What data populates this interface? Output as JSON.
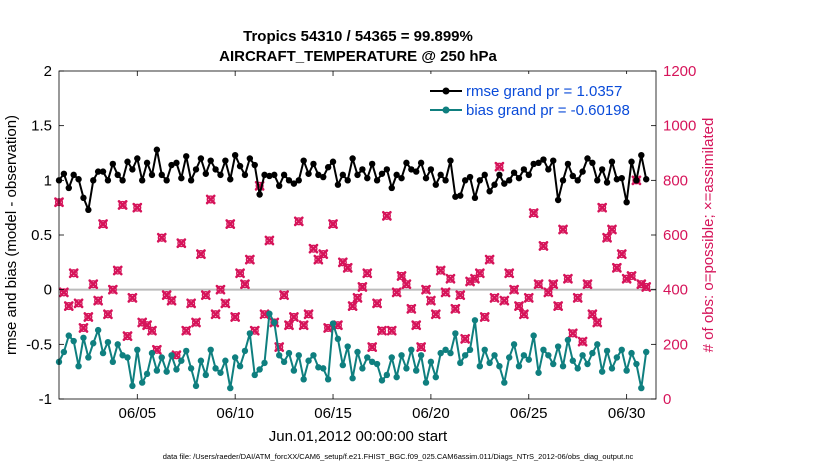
{
  "chart_data": {
    "type": "line",
    "title": "Tropics 54310 / 54365 = 99.899%",
    "subtitle": "AIRCRAFT_TEMPERATURE @ 250 hPa",
    "xlabel": "Jun.01,2012 00:00:00 start",
    "ylabel": "rmse and bias (model - observation)",
    "y2label": "# of obs: o=possible; ×=assimilated",
    "xlim": [
      1,
      31.5
    ],
    "ylim": [
      -1,
      2
    ],
    "y2lim": [
      0,
      1200
    ],
    "x_ticks": [
      5,
      10,
      15,
      20,
      25,
      30
    ],
    "x_tick_labels": [
      "06/05",
      "06/10",
      "06/15",
      "06/20",
      "06/25",
      "06/30"
    ],
    "y_ticks": [
      -1,
      -0.5,
      0,
      0.5,
      1,
      1.5,
      2
    ],
    "y_tick_labels": [
      "-1",
      "-0.5",
      "0",
      "0.5",
      "1",
      "1.5",
      "2"
    ],
    "y2_ticks": [
      0,
      200,
      400,
      600,
      800,
      1000,
      1200
    ],
    "y2_tick_labels": [
      "0",
      "200",
      "400",
      "600",
      "800",
      "1000",
      "1200"
    ],
    "zero_line": 0,
    "legend_position": "top-right",
    "series": [
      {
        "name": "rmse grand pr = 1.0357",
        "color": "#000000",
        "marker": "circle",
        "x": [
          1.0,
          1.25,
          1.5,
          1.75,
          2.0,
          2.25,
          2.5,
          2.75,
          3.0,
          3.25,
          3.5,
          3.75,
          4.0,
          4.25,
          4.5,
          4.75,
          5.0,
          5.25,
          5.5,
          5.75,
          6.0,
          6.25,
          6.5,
          6.75,
          7.0,
          7.25,
          7.5,
          7.75,
          8.0,
          8.25,
          8.5,
          8.75,
          9.0,
          9.25,
          9.5,
          9.75,
          10.0,
          10.25,
          10.5,
          10.75,
          11.0,
          11.25,
          11.5,
          11.75,
          12.0,
          12.25,
          12.5,
          12.75,
          13.0,
          13.25,
          13.5,
          13.75,
          14.0,
          14.25,
          14.5,
          14.75,
          15.0,
          15.25,
          15.5,
          15.75,
          16.0,
          16.25,
          16.5,
          16.75,
          17.0,
          17.25,
          17.5,
          17.75,
          18.0,
          18.25,
          18.5,
          18.75,
          19.0,
          19.25,
          19.5,
          19.75,
          20.0,
          20.25,
          20.5,
          20.75,
          21.0,
          21.25,
          21.5,
          21.75,
          22.0,
          22.25,
          22.5,
          22.75,
          23.0,
          23.25,
          23.5,
          23.75,
          24.0,
          24.25,
          24.5,
          24.75,
          25.0,
          25.25,
          25.5,
          25.75,
          26.0,
          26.25,
          26.5,
          26.75,
          27.0,
          27.25,
          27.5,
          27.75,
          28.0,
          28.25,
          28.5,
          28.75,
          29.0,
          29.25,
          29.5,
          29.75,
          30.0,
          30.25,
          30.5,
          30.75
        ],
        "values": [
          1.0,
          1.06,
          0.93,
          1.05,
          1.01,
          0.84,
          0.73,
          1.0,
          1.08,
          1.08,
          1.0,
          1.15,
          1.05,
          1.0,
          1.17,
          1.1,
          1.2,
          1.0,
          1.16,
          1.05,
          1.28,
          1.05,
          1.0,
          1.14,
          1.16,
          1.02,
          1.22,
          1.0,
          1.1,
          1.2,
          1.06,
          1.18,
          1.1,
          1.05,
          1.18,
          1.01,
          1.23,
          1.13,
          1.05,
          1.2,
          1.14,
          0.87,
          1.05,
          1.04,
          1.05,
          0.95,
          1.05,
          1.0,
          0.97,
          1.0,
          1.18,
          1.06,
          1.15,
          1.05,
          1.03,
          1.12,
          1.17,
          0.96,
          1.05,
          1.0,
          1.2,
          1.05,
          1.1,
          1.02,
          1.15,
          1.0,
          1.06,
          1.1,
          0.93,
          1.05,
          1.02,
          1.16,
          1.1,
          1.08,
          1.16,
          1.02,
          1.1,
          0.96,
          1.05,
          1.0,
          1.18,
          0.85,
          0.86,
          1.0,
          1.03,
          0.84,
          1.0,
          1.05,
          0.9,
          0.96,
          1.05,
          0.97,
          1.0,
          1.07,
          1.02,
          1.1,
          1.05,
          1.15,
          1.16,
          1.19,
          1.1,
          1.18,
          0.82,
          1.0,
          1.15,
          1.04,
          1.0,
          1.08,
          1.2,
          1.16,
          1.0,
          1.1,
          0.98,
          1.17,
          1.01,
          1.02,
          0.8,
          1.17,
          1.0,
          1.23
        ],
        "last_point": [
          31.0,
          1.01
        ]
      },
      {
        "name": "bias grand pr = -0.60198",
        "color": "#0f7f7f",
        "marker": "circle",
        "x": [
          1.0,
          1.25,
          1.5,
          1.75,
          2.0,
          2.25,
          2.5,
          2.75,
          3.0,
          3.25,
          3.5,
          3.75,
          4.0,
          4.25,
          4.5,
          4.75,
          5.0,
          5.25,
          5.5,
          5.75,
          6.0,
          6.25,
          6.5,
          6.75,
          7.0,
          7.25,
          7.5,
          7.75,
          8.0,
          8.25,
          8.5,
          8.75,
          9.0,
          9.25,
          9.5,
          9.75,
          10.0,
          10.25,
          10.5,
          10.75,
          11.0,
          11.25,
          11.5,
          11.75,
          12.0,
          12.25,
          12.5,
          12.75,
          13.0,
          13.25,
          13.5,
          13.75,
          14.0,
          14.25,
          14.5,
          14.75,
          15.0,
          15.25,
          15.5,
          15.75,
          16.0,
          16.25,
          16.5,
          16.75,
          17.0,
          17.25,
          17.5,
          17.75,
          18.0,
          18.25,
          18.5,
          18.75,
          19.0,
          19.25,
          19.5,
          19.75,
          20.0,
          20.25,
          20.5,
          20.75,
          21.0,
          21.25,
          21.5,
          21.75,
          22.0,
          22.25,
          22.5,
          22.75,
          23.0,
          23.25,
          23.5,
          23.75,
          24.0,
          24.25,
          24.5,
          24.75,
          25.0,
          25.25,
          25.5,
          25.75,
          26.0,
          26.25,
          26.5,
          26.75,
          27.0,
          27.25,
          27.5,
          27.75,
          28.0,
          28.25,
          28.5,
          28.75,
          29.0,
          29.25,
          29.5,
          29.75,
          30.0,
          30.25,
          30.5,
          30.75
        ],
        "values": [
          -0.66,
          -0.57,
          -0.42,
          -0.47,
          -0.7,
          -0.44,
          -0.62,
          -0.49,
          -0.37,
          -0.58,
          -0.48,
          -0.66,
          -0.5,
          -0.6,
          -0.62,
          -0.88,
          -0.55,
          -0.85,
          -0.77,
          -0.58,
          -0.74,
          -0.62,
          -0.75,
          -0.6,
          -0.73,
          -0.65,
          -0.56,
          -0.72,
          -0.88,
          -0.65,
          -0.78,
          -0.55,
          -0.72,
          -0.76,
          -0.65,
          -0.9,
          -0.62,
          -0.7,
          -0.56,
          -0.4,
          -0.78,
          -0.73,
          -0.67,
          -0.22,
          -0.3,
          -0.6,
          -0.66,
          -0.58,
          -0.74,
          -0.6,
          -0.82,
          -0.65,
          -0.6,
          -0.71,
          -0.72,
          -0.82,
          -0.31,
          -0.45,
          -0.69,
          -0.52,
          -0.81,
          -0.57,
          -0.72,
          -0.62,
          -0.66,
          -0.68,
          -0.83,
          -0.78,
          -0.62,
          -0.8,
          -0.6,
          -0.72,
          -0.55,
          -0.74,
          -0.6,
          -0.85,
          -0.66,
          -0.8,
          -0.58,
          -0.55,
          -0.58,
          -0.4,
          -0.67,
          -0.6,
          -0.55,
          -0.28,
          -0.7,
          -0.55,
          -0.67,
          -0.6,
          -0.7,
          -0.85,
          -0.62,
          -0.5,
          -0.7,
          -0.6,
          -0.64,
          -0.42,
          -0.76,
          -0.55,
          -0.6,
          -0.68,
          -0.52,
          -0.7,
          -0.46,
          -0.65,
          -0.72,
          -0.6,
          -0.68,
          -0.58,
          -0.5,
          -0.75,
          -0.56,
          -0.72,
          -0.62,
          -0.55,
          -0.74,
          -0.58,
          -0.68,
          -0.9
        ],
        "last_point": [
          31.0,
          -0.57
        ]
      }
    ],
    "obs_assimilated": {
      "name": "assimilated",
      "marker": "x",
      "color": "#d6145a",
      "x": [
        1.0,
        1.25,
        1.5,
        1.75,
        2.0,
        2.25,
        2.5,
        2.75,
        3.0,
        3.25,
        3.5,
        3.75,
        4.0,
        4.25,
        4.5,
        4.75,
        5.0,
        5.25,
        5.5,
        5.75,
        6.0,
        6.25,
        6.5,
        6.75,
        7.0,
        7.25,
        7.5,
        7.75,
        8.0,
        8.25,
        8.5,
        8.75,
        9.0,
        9.25,
        9.5,
        9.75,
        10.0,
        10.25,
        10.5,
        10.75,
        11.0,
        11.25,
        11.5,
        11.75,
        12.0,
        12.25,
        12.5,
        12.75,
        13.0,
        13.25,
        13.5,
        13.75,
        14.0,
        14.25,
        14.5,
        14.75,
        15.0,
        15.25,
        15.5,
        15.75,
        16.0,
        16.25,
        16.5,
        16.75,
        17.0,
        17.25,
        17.5,
        17.75,
        18.0,
        18.25,
        18.5,
        18.75,
        19.0,
        19.25,
        19.5,
        19.75,
        20.0,
        20.25,
        20.5,
        20.75,
        21.0,
        21.25,
        21.5,
        21.75,
        22.0,
        22.25,
        22.5,
        22.75,
        23.0,
        23.25,
        23.5,
        23.75,
        24.0,
        24.25,
        24.5,
        24.75,
        25.0,
        25.25,
        25.5,
        25.75,
        26.0,
        26.25,
        26.5,
        26.75,
        27.0,
        27.25,
        27.5,
        27.75,
        28.0,
        28.25,
        28.5,
        28.75,
        29.0,
        29.25,
        29.5,
        29.75,
        30.0,
        30.25,
        30.5,
        30.75,
        31.0
      ],
      "values": [
        720,
        390,
        340,
        460,
        350,
        260,
        300,
        420,
        360,
        640,
        310,
        400,
        470,
        710,
        230,
        370,
        700,
        280,
        270,
        250,
        180,
        590,
        380,
        360,
        160,
        570,
        250,
        350,
        280,
        530,
        380,
        730,
        310,
        400,
        350,
        640,
        300,
        460,
        420,
        510,
        250,
        780,
        310,
        580,
        280,
        190,
        380,
        270,
        300,
        650,
        270,
        310,
        550,
        510,
        530,
        260,
        640,
        270,
        500,
        480,
        340,
        370,
        410,
        460,
        190,
        350,
        250,
        670,
        250,
        390,
        450,
        420,
        330,
        270,
        190,
        400,
        360,
        310,
        470,
        390,
        440,
        330,
        380,
        220,
        430,
        440,
        460,
        300,
        510,
        370,
        850,
        360,
        460,
        400,
        340,
        310,
        370,
        680,
        420,
        560,
        390,
        420,
        340,
        620,
        440,
        240,
        370,
        210,
        420,
        310,
        280,
        700,
        590,
        620,
        480,
        530,
        440,
        450,
        800,
        420,
        410
      ]
    },
    "obs_possible": {
      "name": "possible",
      "marker": "o",
      "color": "#d6145a",
      "values_same_as_assimilated": true
    }
  },
  "footer": {
    "data_file": "data file: /Users/raeder/DAI/ATM_forcXX/CAM6_setup/f.e21.FHIST_BGC.f09_025.CAM6assim.011/Diags_NTrS_2012-06/obs_diag_output.nc"
  }
}
